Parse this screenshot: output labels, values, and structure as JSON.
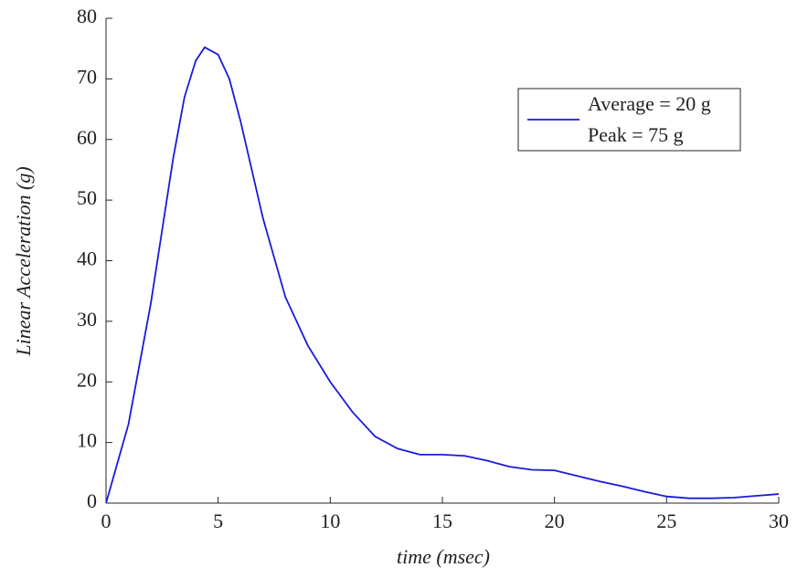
{
  "chart_data": {
    "type": "line",
    "xlabel": "time (msec)",
    "ylabel": "Linear Acceleration (g)",
    "x": [
      0,
      1,
      2,
      3,
      3.5,
      4,
      4.4,
      5,
      5.5,
      6,
      7,
      8,
      9,
      10,
      11,
      12,
      13,
      14,
      15,
      16,
      17,
      18,
      19,
      20,
      21,
      22,
      23,
      24,
      25,
      26,
      27,
      28,
      29,
      30
    ],
    "series": [
      {
        "name": "Average = 20 g",
        "legend_note": "Peak = 75 g",
        "color": "#1a1adc",
        "values": [
          0,
          13,
          33,
          57,
          67,
          73,
          75.2,
          74,
          70,
          63,
          47,
          34,
          26,
          20,
          15,
          11,
          9,
          8,
          8,
          7.8,
          7,
          6,
          5.5,
          5.4,
          4.5,
          3.6,
          2.8,
          1.9,
          1.1,
          0.8,
          0.8,
          0.9,
          1.2,
          1.5
        ]
      }
    ],
    "xlim": [
      0,
      30
    ],
    "xticks": [
      0,
      5,
      10,
      15,
      20,
      25,
      30
    ],
    "ylim": [
      0,
      80
    ],
    "yticks": [
      0,
      10,
      20,
      30,
      40,
      50,
      60,
      70,
      80
    ],
    "grid": false,
    "legend": "upper right"
  }
}
